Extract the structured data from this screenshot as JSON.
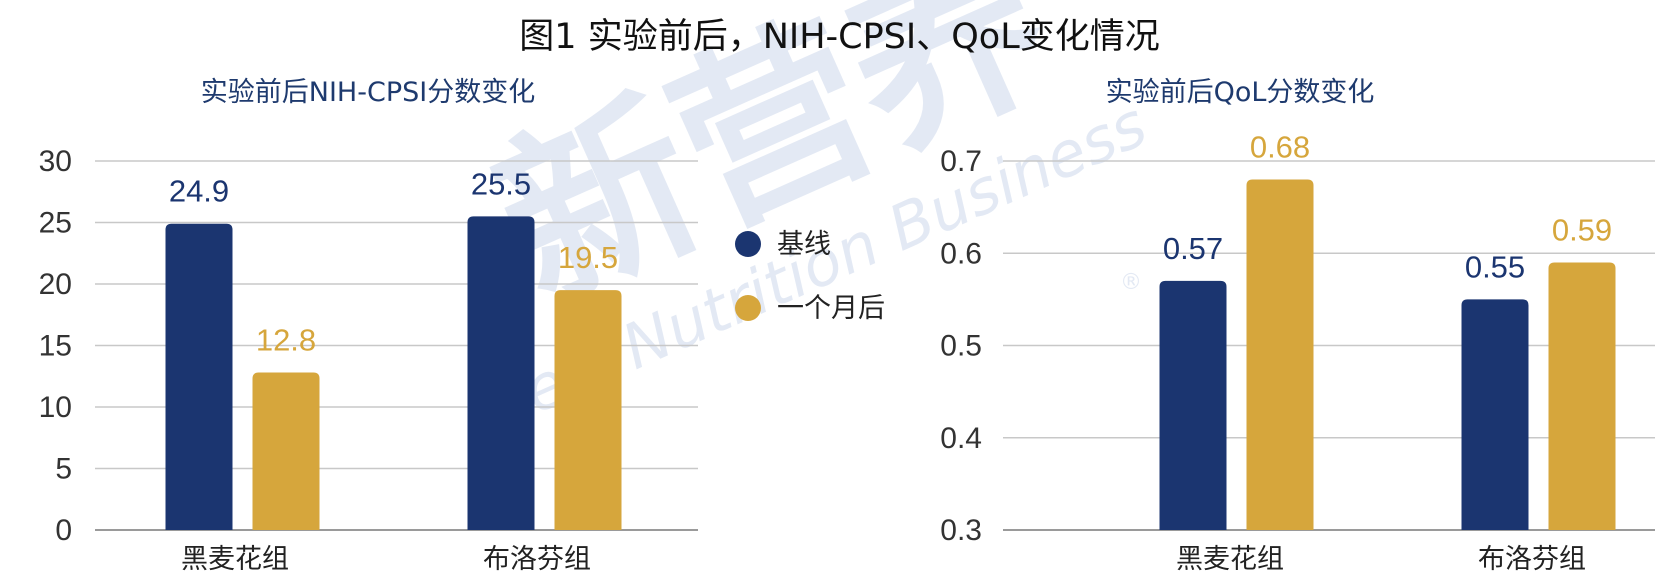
{
  "title": "图1 实验前后，NIH-CPSI、QoL变化情况",
  "legend": [
    {
      "name": "基线",
      "color": "#1b3570"
    },
    {
      "name": "一个月后",
      "color": "#d6a63c"
    }
  ],
  "watermark": {
    "cn": "新营养",
    "en": "New Nutrition Business",
    "reg": "®"
  },
  "chart_data": [
    {
      "type": "bar",
      "title": "实验前后NIH-CPSI分数变化",
      "categories": [
        "黑麦花组",
        "布洛芬组"
      ],
      "series": [
        {
          "name": "基线",
          "values": [
            24.9,
            25.5
          ]
        },
        {
          "name": "一个月后",
          "values": [
            12.8,
            19.5
          ]
        }
      ],
      "ylim": [
        0,
        30
      ],
      "yticks": [
        "0",
        "5",
        "10",
        "15",
        "20",
        "25",
        "30"
      ],
      "data_labels": [
        [
          "24.9",
          "25.5"
        ],
        [
          "12.8",
          "19.5"
        ]
      ],
      "grid": true
    },
    {
      "type": "bar",
      "title": "实验前后QoL分数变化",
      "categories": [
        "黑麦花组",
        "布洛芬组"
      ],
      "series": [
        {
          "name": "基线",
          "values": [
            0.57,
            0.55
          ]
        },
        {
          "name": "一个月后",
          "values": [
            0.68,
            0.59
          ]
        }
      ],
      "ylim": [
        0.3,
        0.7
      ],
      "yticks": [
        "0.3",
        "0.4",
        "0.5",
        "0.6",
        "0.7"
      ],
      "data_labels": [
        [
          "0.57",
          "0.55"
        ],
        [
          "0.68",
          "0.59"
        ]
      ],
      "grid": true
    }
  ]
}
